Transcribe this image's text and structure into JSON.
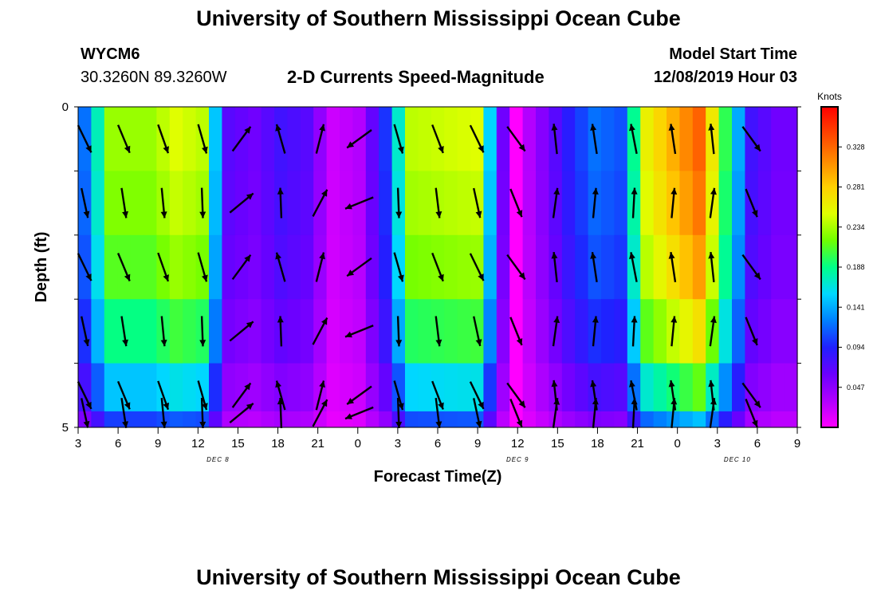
{
  "header": {
    "title_top": "University of Southern Mississippi Ocean Cube",
    "title_bottom": "University of Southern Mississippi Ocean Cube",
    "station_id": "WYCM6",
    "station_coords": "30.3260N 89.3260W",
    "chart_title": "2-D Currents Speed-Magnitude",
    "model_start_label": "Model Start Time",
    "model_start_value": "12/08/2019 Hour 03"
  },
  "colors": {
    "scale": [
      "#ff00ff",
      "#b000ff",
      "#6a00ff",
      "#2020ff",
      "#0080ff",
      "#00d8ff",
      "#00ff88",
      "#70ff00",
      "#e0ff00",
      "#ffd000",
      "#ff8800",
      "#ff4400",
      "#ff0000"
    ]
  },
  "chart_data": {
    "type": "heatmap",
    "title": "2-D Currents Speed-Magnitude",
    "xlabel": "Forecast Time(Z)",
    "ylabel": "Depth (ft)",
    "x_tick_labels": [
      "3",
      "6",
      "9",
      "12",
      "15",
      "18",
      "21",
      "0",
      "3",
      "6",
      "9",
      "12",
      "15",
      "18",
      "21",
      "0",
      "3",
      "6",
      "9"
    ],
    "date_labels": [
      {
        "label": "DEC 8",
        "tick_index": 3.5
      },
      {
        "label": "DEC 9",
        "tick_index": 11
      },
      {
        "label": "DEC 10",
        "tick_index": 16.5
      }
    ],
    "y_tick_labels": [
      {
        "label": "0",
        "depth": 0
      },
      {
        "label": "5",
        "depth": 5
      }
    ],
    "ylim": [
      0,
      5
    ],
    "depth_levels": [
      0.5,
      1.5,
      2.5,
      3.5,
      4.5,
      5.0
    ],
    "time_step_hours": 1,
    "n_times": 55,
    "colorbar": {
      "unit": "Knots",
      "ticks": [
        "0.328",
        "0.281",
        "0.234",
        "0.188",
        "0.141",
        "0.094",
        "0.047"
      ],
      "range": [
        0.0,
        0.375
      ]
    },
    "speed_profile": [
      {
        "t": 0,
        "v": 0.12
      },
      {
        "t": 2,
        "v": 0.23
      },
      {
        "t": 5,
        "v": 0.23
      },
      {
        "t": 7,
        "v": 0.25
      },
      {
        "t": 9,
        "v": 0.24
      },
      {
        "t": 10,
        "v": 0.15
      },
      {
        "t": 11,
        "v": 0.07
      },
      {
        "t": 13,
        "v": 0.06
      },
      {
        "t": 15,
        "v": 0.08
      },
      {
        "t": 17,
        "v": 0.07
      },
      {
        "t": 19,
        "v": 0.02
      },
      {
        "t": 21,
        "v": 0.03
      },
      {
        "t": 23,
        "v": 0.1
      },
      {
        "t": 25,
        "v": 0.24
      },
      {
        "t": 30,
        "v": 0.25
      },
      {
        "t": 32,
        "v": 0.06
      },
      {
        "t": 33,
        "v": 0.0
      },
      {
        "t": 34,
        "v": 0.03
      },
      {
        "t": 37,
        "v": 0.09
      },
      {
        "t": 39,
        "v": 0.12
      },
      {
        "t": 41,
        "v": 0.11
      },
      {
        "t": 43,
        "v": 0.26
      },
      {
        "t": 47,
        "v": 0.33
      },
      {
        "t": 49,
        "v": 0.2
      },
      {
        "t": 51,
        "v": 0.08
      },
      {
        "t": 53,
        "v": 0.06
      },
      {
        "t": 54,
        "v": 0.06
      }
    ],
    "level_factors": [
      1.0,
      0.97,
      0.92,
      0.82,
      0.65,
      0.45
    ],
    "vector_times": [
      0,
      3,
      6,
      9,
      12,
      15,
      18,
      21,
      24,
      27,
      30,
      33,
      36,
      39,
      42,
      45,
      48,
      51
    ],
    "vector_direction_profile_deg": [
      {
        "t": 0,
        "d": 160
      },
      {
        "t": 9,
        "d": 170
      },
      {
        "t": 11,
        "d": 60
      },
      {
        "t": 15,
        "d": 350
      },
      {
        "t": 18,
        "d": 20
      },
      {
        "t": 21,
        "d": 240
      },
      {
        "t": 24,
        "d": 170
      },
      {
        "t": 30,
        "d": 160
      },
      {
        "t": 33,
        "d": 150
      },
      {
        "t": 36,
        "d": 0
      },
      {
        "t": 42,
        "d": 355
      },
      {
        "t": 48,
        "d": 0
      },
      {
        "t": 51,
        "d": 150
      }
    ]
  }
}
